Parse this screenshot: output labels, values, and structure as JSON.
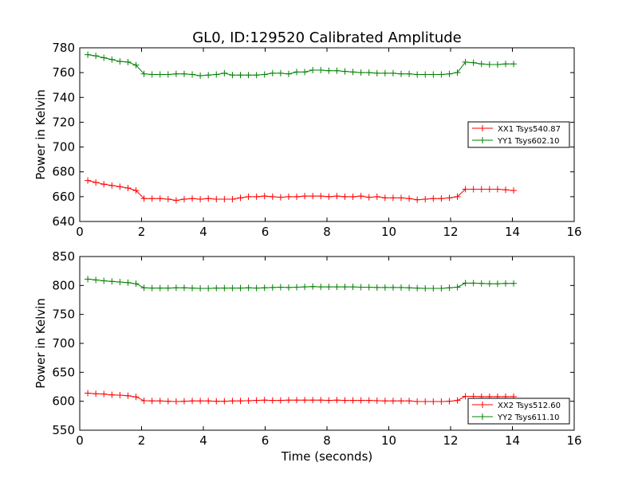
{
  "figure": {
    "title": "GL0, ID:129520 Calibrated Amplitude",
    "xlabel": "Time (seconds)"
  },
  "chart_data": [
    {
      "type": "line",
      "ylabel": "Power in Kelvin",
      "xlim": [
        0,
        16
      ],
      "ylim": [
        640,
        780
      ],
      "xticks": [
        "0",
        "2",
        "4",
        "6",
        "8",
        "10",
        "12",
        "14",
        "16"
      ],
      "yticks": [
        "640",
        "660",
        "680",
        "700",
        "720",
        "740",
        "760",
        "780"
      ],
      "legend_placement": "center-right",
      "x": [
        0.26,
        0.52,
        0.78,
        1.04,
        1.3,
        1.56,
        1.82,
        2.08,
        2.34,
        2.6,
        2.86,
        3.12,
        3.38,
        3.64,
        3.9,
        4.16,
        4.42,
        4.68,
        4.94,
        5.2,
        5.46,
        5.72,
        5.98,
        6.24,
        6.5,
        6.76,
        7.02,
        7.28,
        7.54,
        7.8,
        8.06,
        8.32,
        8.58,
        8.84,
        9.1,
        9.36,
        9.62,
        9.88,
        10.14,
        10.4,
        10.66,
        10.92,
        11.18,
        11.44,
        11.7,
        11.96,
        12.22,
        12.48,
        12.74,
        13.0,
        13.26,
        13.52,
        13.78,
        14.04
      ],
      "series": [
        {
          "name": "XX1 Tsys540.87",
          "color": "#ff0000",
          "values": [
            673,
            671.5,
            670,
            669,
            668,
            667,
            665,
            658.5,
            658.5,
            658.5,
            658,
            657,
            658,
            658.5,
            658,
            658.5,
            658,
            658,
            658,
            659,
            660,
            660,
            660.5,
            660,
            659.5,
            660,
            660,
            660.5,
            660.5,
            660.5,
            660,
            660.5,
            660,
            660,
            660.5,
            659.5,
            660,
            659,
            659,
            659,
            658.5,
            657.5,
            658,
            658.5,
            658.5,
            659,
            660,
            666,
            666,
            666,
            666,
            666,
            665.5,
            665
          ]
        },
        {
          "name": "YY1 Tsys602.10",
          "color": "#008000",
          "values": [
            774.5,
            773.5,
            772,
            770.5,
            769,
            768.5,
            766,
            759,
            758.5,
            758.5,
            758.5,
            759,
            759,
            758.5,
            757.5,
            758,
            758.5,
            759.5,
            758,
            758,
            758,
            758,
            758.5,
            759.5,
            759.5,
            759,
            760.5,
            760.5,
            762,
            762,
            761.5,
            761.5,
            761,
            760.5,
            760,
            760,
            759.5,
            759.5,
            759.5,
            759,
            759,
            758.5,
            758.5,
            758.5,
            758.5,
            759,
            760,
            768.5,
            768,
            767,
            766.5,
            766.5,
            767,
            767
          ]
        }
      ]
    },
    {
      "type": "line",
      "ylabel": "Power in Kelvin",
      "xlabel": "Time (seconds)",
      "xlim": [
        0,
        16
      ],
      "ylim": [
        550,
        850
      ],
      "xticks": [
        "0",
        "2",
        "4",
        "6",
        "8",
        "10",
        "12",
        "14",
        "16"
      ],
      "yticks": [
        "550",
        "600",
        "650",
        "700",
        "750",
        "800",
        "850"
      ],
      "legend_placement": "lower-right",
      "x": [
        0.26,
        0.52,
        0.78,
        1.04,
        1.3,
        1.56,
        1.82,
        2.08,
        2.34,
        2.6,
        2.86,
        3.12,
        3.38,
        3.64,
        3.9,
        4.16,
        4.42,
        4.68,
        4.94,
        5.2,
        5.46,
        5.72,
        5.98,
        6.24,
        6.5,
        6.76,
        7.02,
        7.28,
        7.54,
        7.8,
        8.06,
        8.32,
        8.58,
        8.84,
        9.1,
        9.36,
        9.62,
        9.88,
        10.14,
        10.4,
        10.66,
        10.92,
        11.18,
        11.44,
        11.7,
        11.96,
        12.22,
        12.48,
        12.74,
        13.0,
        13.26,
        13.52,
        13.78,
        14.04
      ],
      "series": [
        {
          "name": "XX2 Tsys512.60",
          "color": "#ff0000",
          "values": [
            614,
            613,
            612.5,
            611,
            610.5,
            609.5,
            607.5,
            601,
            600.5,
            600.5,
            600,
            599.5,
            600,
            600.5,
            600.5,
            600.5,
            600,
            600,
            600.5,
            600.5,
            601,
            601.5,
            602,
            601.5,
            601.5,
            602,
            602,
            602,
            602,
            602,
            601.5,
            602,
            601.5,
            601.5,
            601.5,
            601.5,
            601,
            600.5,
            600.5,
            600.5,
            600.5,
            599.5,
            599.5,
            599.5,
            599.5,
            600,
            601.5,
            608.5,
            608.5,
            608,
            608,
            608,
            608,
            608
          ]
        },
        {
          "name": "YY2 Tsys611.10",
          "color": "#008000",
          "values": [
            811,
            809.5,
            808,
            807,
            806,
            805,
            803,
            796,
            795.5,
            795.5,
            795.5,
            796,
            796,
            795.5,
            795,
            795,
            795.5,
            795.5,
            795.5,
            795.5,
            796,
            795.5,
            796,
            796.5,
            797,
            796.5,
            797,
            797.5,
            798,
            797.5,
            797.5,
            797.5,
            797.5,
            797.5,
            797,
            797,
            796.5,
            796.5,
            796.5,
            796.5,
            796,
            795.5,
            795,
            795,
            795,
            796,
            797,
            804,
            804,
            803.5,
            803,
            803,
            803.5,
            803.5
          ]
        }
      ]
    }
  ]
}
